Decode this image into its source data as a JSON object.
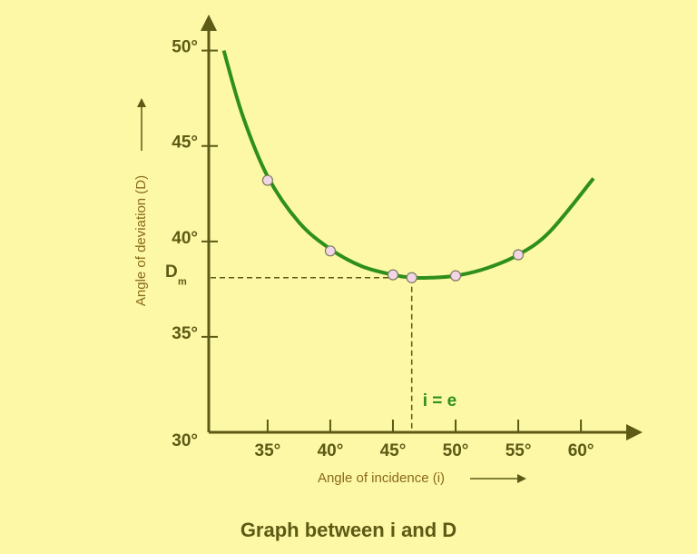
{
  "chart_data": {
    "type": "line",
    "title": "Graph between i and D",
    "x_label": "Angle of incidence (i)",
    "y_label": "Angle of deviation (D)",
    "xlim": [
      30.3,
      64.7
    ],
    "ylim": [
      30,
      51.6
    ],
    "xticks": [
      {
        "value": 35,
        "label": "35°"
      },
      {
        "value": 40,
        "label": "40°"
      },
      {
        "value": 45,
        "label": "45°"
      },
      {
        "value": 50,
        "label": "50°"
      },
      {
        "value": 55,
        "label": "55°"
      },
      {
        "value": 60,
        "label": "60°"
      }
    ],
    "yticks": [
      {
        "value": 30,
        "label": "30°"
      },
      {
        "value": 35,
        "label": "35°"
      },
      {
        "value": 40,
        "label": "40°"
      },
      {
        "value": 45,
        "label": "45°"
      },
      {
        "value": 50,
        "label": "50°"
      }
    ],
    "series": [
      {
        "color": "#2f8f1c",
        "markers": false,
        "x": [
          31.5,
          33,
          35,
          37.5,
          40,
          42.5,
          45,
          46.5,
          48,
          50,
          52.5,
          55,
          57.5,
          61
        ],
        "values": [
          50,
          46.6,
          43.4,
          41,
          39.6,
          38.7,
          38.25,
          38.1,
          38.1,
          38.2,
          38.6,
          39.3,
          40.5,
          43.3
        ]
      },
      {
        "color": "#f3d6e6",
        "markers": true,
        "x": [
          35,
          40,
          45,
          46.5,
          50,
          55
        ],
        "values": [
          43.2,
          39.5,
          38.25,
          38.1,
          38.2,
          39.3
        ]
      }
    ],
    "min_deviation": {
      "x": 46.5,
      "value": 38.1,
      "label": "D",
      "subscript": "m",
      "x_label": "i = e"
    }
  }
}
